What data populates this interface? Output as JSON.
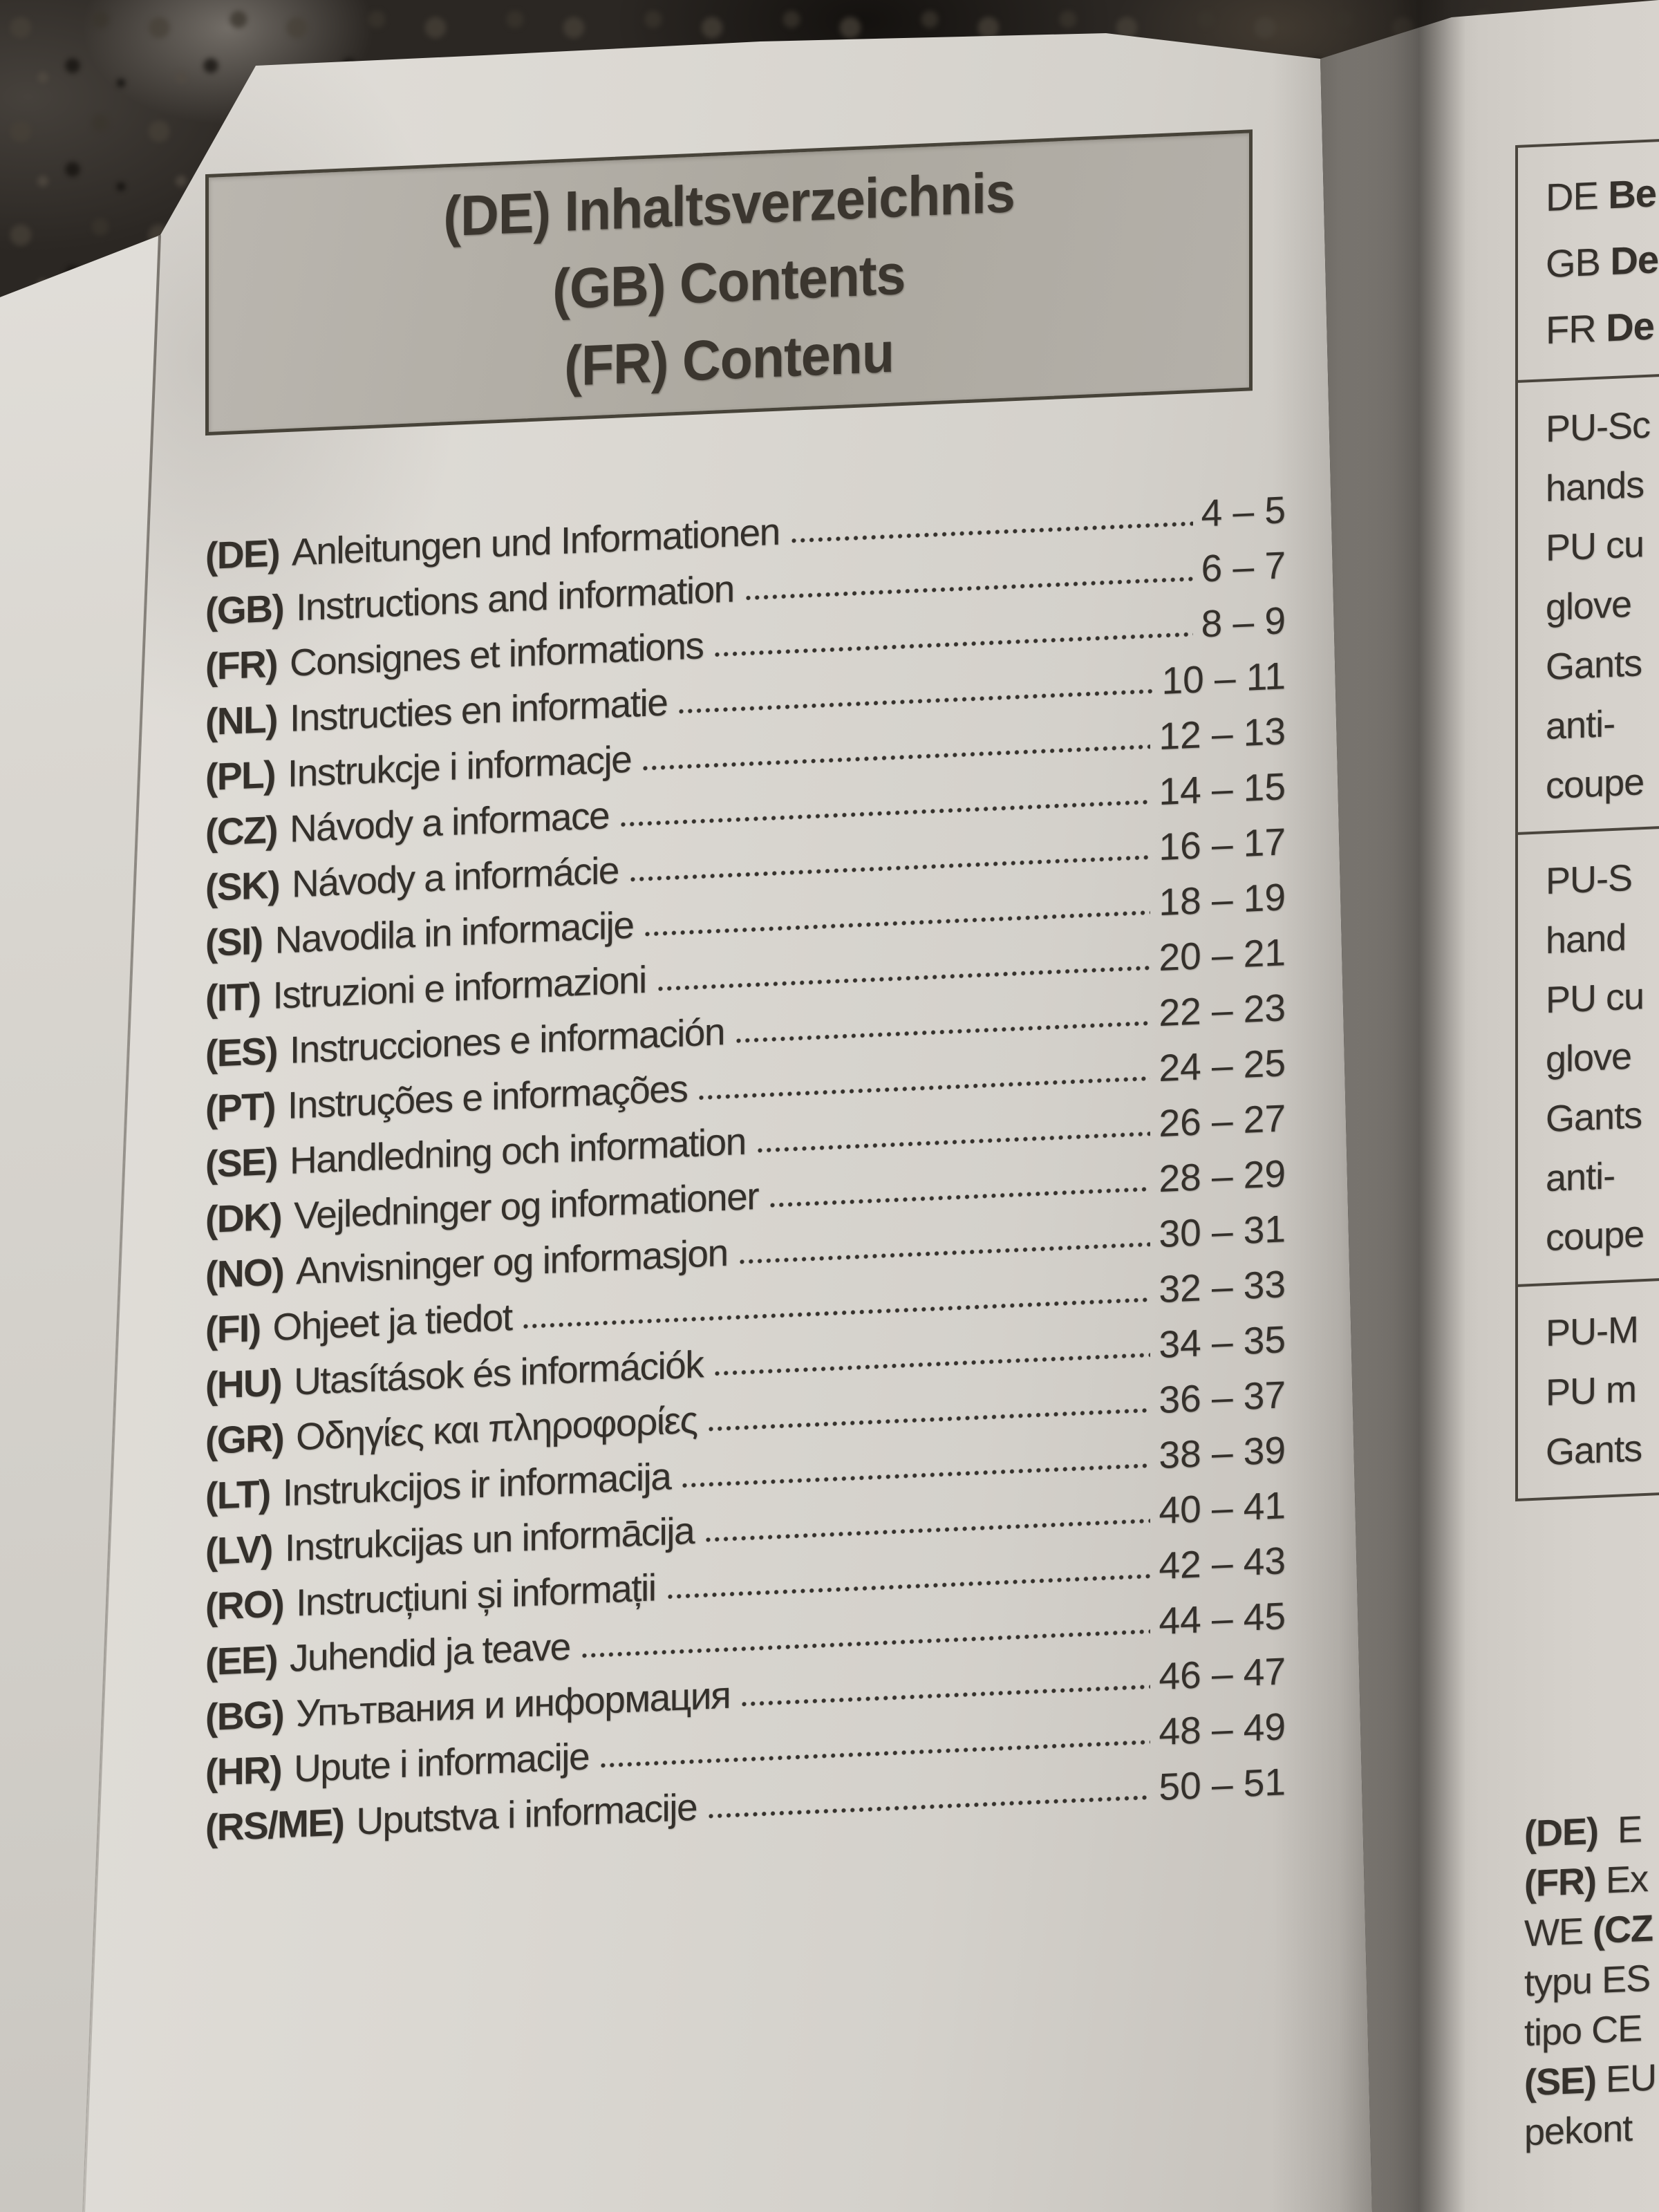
{
  "header_box": {
    "lines": [
      "(DE) Inhaltsverzeichnis",
      "(GB) Contents",
      "(FR) Contenu"
    ]
  },
  "toc": {
    "entries": [
      {
        "code": "(DE)",
        "title": "Anleitungen und Informationen",
        "pages": "4 – 5"
      },
      {
        "code": "(GB)",
        "title": "Instructions and information",
        "pages": "6 – 7"
      },
      {
        "code": "(FR)",
        "title": "Consignes et informations",
        "pages": "8 – 9"
      },
      {
        "code": "(NL)",
        "title": "Instructies en informatie",
        "pages": "10 – 11"
      },
      {
        "code": "(PL)",
        "title": "Instrukcje i informacje",
        "pages": "12 – 13"
      },
      {
        "code": "(CZ)",
        "title": "Návody a informace",
        "pages": "14 – 15"
      },
      {
        "code": "(SK)",
        "title": "Návody a informácie",
        "pages": "16 – 17"
      },
      {
        "code": "(SI)",
        "title": "Navodila in informacije",
        "pages": "18 – 19"
      },
      {
        "code": "(IT)",
        "title": "Istruzioni e informazioni",
        "pages": "20 – 21"
      },
      {
        "code": "(ES)",
        "title": "Instrucciones e información",
        "pages": "22 – 23"
      },
      {
        "code": "(PT)",
        "title": "Instruções e informações",
        "pages": "24 – 25"
      },
      {
        "code": "(SE)",
        "title": "Handledning och information",
        "pages": "26 – 27"
      },
      {
        "code": "(DK)",
        "title": "Vejledninger og informationer",
        "pages": "28 – 29"
      },
      {
        "code": "(NO)",
        "title": "Anvisninger og informasjon",
        "pages": "30 – 31"
      },
      {
        "code": "(FI)",
        "title": "Ohjeet ja tiedot",
        "pages": "32 – 33"
      },
      {
        "code": "(HU)",
        "title": "Utasítások és információk",
        "pages": "34 – 35"
      },
      {
        "code": "(GR)",
        "title": "Οδηγίες και πληροφορίες",
        "pages": "36 – 37"
      },
      {
        "code": "(LT)",
        "title": "Instrukcijos ir informacija",
        "pages": "38 – 39"
      },
      {
        "code": "(LV)",
        "title": "Instrukcijas un informācija",
        "pages": "40 – 41"
      },
      {
        "code": "(RO)",
        "title": "Instrucțiuni și informații",
        "pages": "42 – 43"
      },
      {
        "code": "(EE)",
        "title": "Juhendid ja teave",
        "pages": "44 – 45"
      },
      {
        "code": "(BG)",
        "title": "Упътвания и информация",
        "pages": "46 – 47"
      },
      {
        "code": "(HR)",
        "title": "Upute i informacije",
        "pages": "48 – 49"
      },
      {
        "code": "(RS/ME)",
        "title": "Uputstva i informacije",
        "pages": "50 – 51"
      }
    ]
  },
  "right_page": {
    "header_rows": [
      {
        "normal": "DE ",
        "bold": "Be"
      },
      {
        "normal": "GB ",
        "bold": "De"
      },
      {
        "normal": "FR ",
        "bold": "De"
      }
    ],
    "spec_sections": [
      {
        "lines": [
          "PU-Sc",
          "hands",
          "PU cu",
          "glove",
          "Gants",
          "anti-",
          "coupe"
        ]
      },
      {
        "lines": [
          "PU-S",
          "hand",
          "PU cu",
          "glove",
          "Gants",
          "anti-",
          "coupe"
        ]
      },
      {
        "lines": [
          "PU-M",
          "PU m",
          "Gants"
        ]
      }
    ],
    "footer_lines": [
      [
        {
          "text": "(DE)",
          "bold": true
        },
        {
          "text": "  E",
          "bold": false
        }
      ],
      [
        {
          "text": "(FR)",
          "bold": true
        },
        {
          "text": " Ex",
          "bold": false
        }
      ],
      [
        {
          "text": "WE ",
          "bold": false
        },
        {
          "text": "(CZ",
          "bold": true
        }
      ],
      [
        {
          "text": "typu ES",
          "bold": false
        }
      ],
      [
        {
          "text": "tipo CE",
          "bold": false
        }
      ],
      [
        {
          "text": "(SE)",
          "bold": true
        },
        {
          "text": " EU",
          "bold": false
        }
      ],
      [
        {
          "text": "pekont",
          "bold": false
        }
      ]
    ]
  },
  "colors": {
    "paper": "#d8d5cf",
    "ink": "#35312c",
    "header_box_fill": "#b0aca5",
    "header_box_border": "#474339",
    "granite": "#2b2723"
  }
}
